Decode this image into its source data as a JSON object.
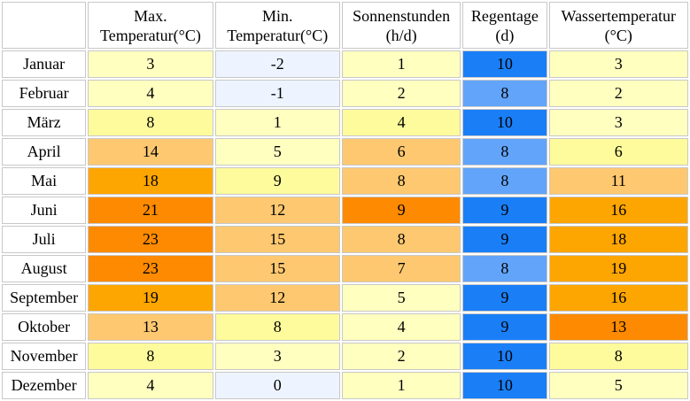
{
  "headers": [
    {
      "line1": "",
      "line2": ""
    },
    {
      "line1": "Max.",
      "line2": "Temperatur(°C)"
    },
    {
      "line1": "Min.",
      "line2": "Temperatur(°C)"
    },
    {
      "line1": "Sonnenstunden",
      "line2": "(h/d)"
    },
    {
      "line1": "Regentage",
      "line2": "(d)"
    },
    {
      "line1": "Wassertemperatur",
      "line2": "(°C)"
    }
  ],
  "rows": [
    {
      "month": "Januar",
      "cells": [
        {
          "v": "3",
          "c": "#ffffc0"
        },
        {
          "v": "-2",
          "c": "#eef4ff"
        },
        {
          "v": "1",
          "c": "#ffffc0"
        },
        {
          "v": "10",
          "c": "#1a7ff7"
        },
        {
          "v": "3",
          "c": "#ffffc0"
        }
      ]
    },
    {
      "month": "Februar",
      "cells": [
        {
          "v": "4",
          "c": "#ffffc0"
        },
        {
          "v": "-1",
          "c": "#eef4ff"
        },
        {
          "v": "2",
          "c": "#ffffc0"
        },
        {
          "v": "8",
          "c": "#62a4f9"
        },
        {
          "v": "2",
          "c": "#ffffc0"
        }
      ]
    },
    {
      "month": "März",
      "cells": [
        {
          "v": "8",
          "c": "#fdfb9b"
        },
        {
          "v": "1",
          "c": "#ffffc0"
        },
        {
          "v": "4",
          "c": "#fdfb9b"
        },
        {
          "v": "10",
          "c": "#1a7ff7"
        },
        {
          "v": "3",
          "c": "#ffffc0"
        }
      ]
    },
    {
      "month": "April",
      "cells": [
        {
          "v": "14",
          "c": "#fdc870"
        },
        {
          "v": "5",
          "c": "#ffffc0"
        },
        {
          "v": "6",
          "c": "#fdc870"
        },
        {
          "v": "8",
          "c": "#62a4f9"
        },
        {
          "v": "6",
          "c": "#fdfb9b"
        }
      ]
    },
    {
      "month": "Mai",
      "cells": [
        {
          "v": "18",
          "c": "#fda500"
        },
        {
          "v": "9",
          "c": "#fdfb9b"
        },
        {
          "v": "8",
          "c": "#fdc870"
        },
        {
          "v": "8",
          "c": "#62a4f9"
        },
        {
          "v": "11",
          "c": "#fdc870"
        }
      ]
    },
    {
      "month": "Juni",
      "cells": [
        {
          "v": "21",
          "c": "#fd8a00"
        },
        {
          "v": "12",
          "c": "#fdc870"
        },
        {
          "v": "9",
          "c": "#fd8a00"
        },
        {
          "v": "9",
          "c": "#1a7ff7"
        },
        {
          "v": "16",
          "c": "#fda500"
        }
      ]
    },
    {
      "month": "Juli",
      "cells": [
        {
          "v": "23",
          "c": "#fd8a00"
        },
        {
          "v": "15",
          "c": "#fdc870"
        },
        {
          "v": "8",
          "c": "#fdc870"
        },
        {
          "v": "9",
          "c": "#1a7ff7"
        },
        {
          "v": "18",
          "c": "#fda500"
        }
      ]
    },
    {
      "month": "August",
      "cells": [
        {
          "v": "23",
          "c": "#fd8a00"
        },
        {
          "v": "15",
          "c": "#fdc870"
        },
        {
          "v": "7",
          "c": "#fdc870"
        },
        {
          "v": "8",
          "c": "#62a4f9"
        },
        {
          "v": "19",
          "c": "#fda500"
        }
      ]
    },
    {
      "month": "September",
      "cells": [
        {
          "v": "19",
          "c": "#fda500"
        },
        {
          "v": "12",
          "c": "#fdc870"
        },
        {
          "v": "5",
          "c": "#ffffc0"
        },
        {
          "v": "9",
          "c": "#1a7ff7"
        },
        {
          "v": "16",
          "c": "#fda500"
        }
      ]
    },
    {
      "month": "Oktober",
      "cells": [
        {
          "v": "13",
          "c": "#fdc870"
        },
        {
          "v": "8",
          "c": "#fdfb9b"
        },
        {
          "v": "4",
          "c": "#ffffc0"
        },
        {
          "v": "9",
          "c": "#1a7ff7"
        },
        {
          "v": "13",
          "c": "#fd8a00"
        }
      ]
    },
    {
      "month": "November",
      "cells": [
        {
          "v": "8",
          "c": "#fdfb9b"
        },
        {
          "v": "3",
          "c": "#ffffc0"
        },
        {
          "v": "2",
          "c": "#ffffc0"
        },
        {
          "v": "10",
          "c": "#1a7ff7"
        },
        {
          "v": "8",
          "c": "#fdfb9b"
        }
      ]
    },
    {
      "month": "Dezember",
      "cells": [
        {
          "v": "4",
          "c": "#ffffc0"
        },
        {
          "v": "0",
          "c": "#eef4ff"
        },
        {
          "v": "1",
          "c": "#ffffc0"
        },
        {
          "v": "10",
          "c": "#1a7ff7"
        },
        {
          "v": "5",
          "c": "#ffffc0"
        }
      ]
    }
  ]
}
